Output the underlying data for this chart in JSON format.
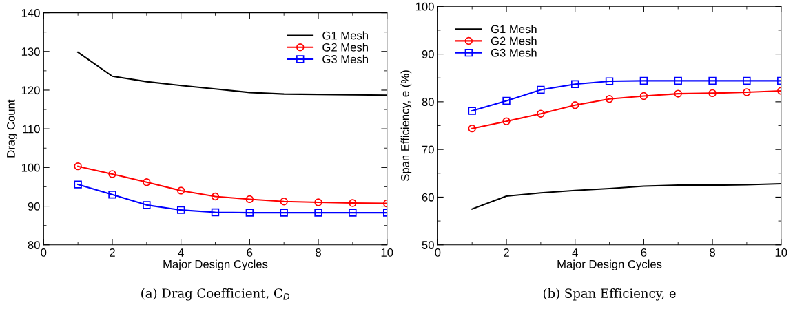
{
  "chart_data": [
    {
      "type": "line",
      "xlabel": "Major Design Cycles",
      "ylabel": "Drag Count",
      "annotations": [
        "(a) Drag Coefficient, C$_{D}$"
      ],
      "x": [
        1,
        2,
        3,
        4,
        5,
        6,
        7,
        8,
        9,
        10
      ],
      "xlim": [
        0,
        10
      ],
      "xticks": [
        0,
        2,
        4,
        6,
        8,
        10
      ],
      "ylim": [
        80,
        140
      ],
      "yticks": [
        80,
        90,
        100,
        110,
        120,
        130,
        140
      ],
      "grid": false,
      "legend": "top right",
      "series": [
        {
          "name": "G1 Mesh",
          "color": "#000000",
          "marker": "none",
          "values": [
            129.8,
            123.6,
            122.2,
            121.2,
            120.3,
            119.4,
            119.0,
            118.9,
            118.8,
            118.7
          ]
        },
        {
          "name": "G2 Mesh",
          "color": "#ff0000",
          "marker": "circle",
          "values": [
            100.3,
            98.3,
            96.2,
            94.0,
            92.5,
            91.8,
            91.2,
            91.0,
            90.8,
            90.7
          ]
        },
        {
          "name": "G3 Mesh",
          "color": "#0000ff",
          "marker": "square",
          "values": [
            95.6,
            93.0,
            90.3,
            89.0,
            88.4,
            88.3,
            88.3,
            88.3,
            88.3,
            88.3
          ]
        }
      ]
    },
    {
      "type": "line",
      "xlabel": "Major Design Cycles",
      "ylabel": "Span Efficiency, e (%)",
      "annotations": [
        "(b) Span Efficiency, e"
      ],
      "x": [
        1,
        2,
        3,
        4,
        5,
        6,
        7,
        8,
        9,
        10
      ],
      "xlim": [
        0,
        10
      ],
      "xticks": [
        0,
        2,
        4,
        6,
        8,
        10
      ],
      "ylim": [
        50,
        100
      ],
      "yticks": [
        50,
        60,
        70,
        80,
        90,
        100
      ],
      "grid": false,
      "legend": "top left",
      "series": [
        {
          "name": "G1 Mesh",
          "color": "#000000",
          "marker": "none",
          "values": [
            57.5,
            60.2,
            60.9,
            61.4,
            61.8,
            62.3,
            62.5,
            62.5,
            62.6,
            62.8
          ]
        },
        {
          "name": "G2 Mesh",
          "color": "#ff0000",
          "marker": "circle",
          "values": [
            74.4,
            75.9,
            77.5,
            79.3,
            80.6,
            81.2,
            81.7,
            81.8,
            82.0,
            82.3
          ]
        },
        {
          "name": "G3 Mesh",
          "color": "#0000ff",
          "marker": "square",
          "values": [
            78.1,
            80.2,
            82.5,
            83.7,
            84.3,
            84.4,
            84.4,
            84.4,
            84.4,
            84.4
          ]
        }
      ]
    }
  ]
}
